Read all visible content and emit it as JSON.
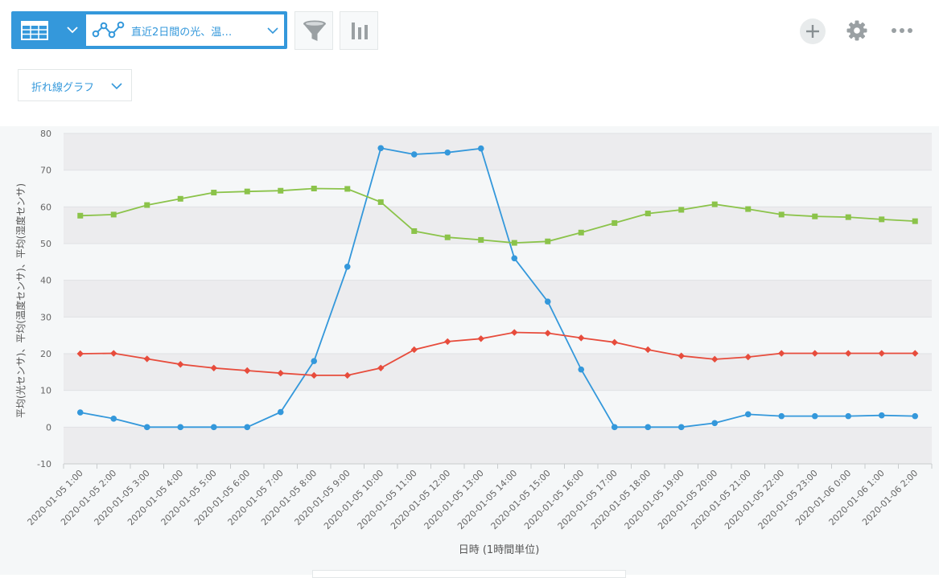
{
  "toolbar": {
    "view_name": "直近2日間の光、温…",
    "chart_type_label": "折れ線グラフ",
    "icons": [
      "table-icon",
      "chevron-down-icon",
      "line-chart-icon",
      "filter-icon",
      "bar-chart-icon",
      "plus-icon",
      "gear-icon",
      "more-icon"
    ],
    "accent_color": "#3498db"
  },
  "chart_data": {
    "type": "line",
    "xlabel": "日時 (1時間単位)",
    "ylabel": "平均(光センサ)、平均(温度センサ)、平均(湿度センサ)",
    "ylim": [
      -10,
      80
    ],
    "yticks": [
      -10,
      0,
      10,
      20,
      30,
      40,
      50,
      60,
      70,
      80
    ],
    "grid": true,
    "legend": "none",
    "categories": [
      "2020-01-05 1:00",
      "2020-01-05 2:00",
      "2020-01-05 3:00",
      "2020-01-05 4:00",
      "2020-01-05 5:00",
      "2020-01-05 6:00",
      "2020-01-05 7:00",
      "2020-01-05 8:00",
      "2020-01-05 9:00",
      "2020-01-05 10:00",
      "2020-01-05 11:00",
      "2020-01-05 12:00",
      "2020-01-05 13:00",
      "2020-01-05 14:00",
      "2020-01-05 15:00",
      "2020-01-05 16:00",
      "2020-01-05 17:00",
      "2020-01-05 18:00",
      "2020-01-05 19:00",
      "2020-01-05 20:00",
      "2020-01-05 21:00",
      "2020-01-05 22:00",
      "2020-01-05 23:00",
      "2020-01-06 0:00",
      "2020-01-06 1:00",
      "2020-01-06 2:00"
    ],
    "series": [
      {
        "color": "#3498db",
        "marker": "circle",
        "values": [
          4,
          2.3,
          0,
          0,
          0,
          0,
          4.1,
          18,
          43.7,
          76,
          74.3,
          74.8,
          75.9,
          46,
          34.2,
          15.7,
          0,
          0,
          0,
          1.1,
          3.5,
          3,
          3,
          3,
          3.2,
          3
        ]
      },
      {
        "color": "#8bc34a",
        "marker": "square",
        "values": [
          57.6,
          57.9,
          60.5,
          62.2,
          63.9,
          64.2,
          64.4,
          65,
          64.9,
          61.3,
          53.4,
          51.7,
          51,
          50.2,
          50.6,
          53,
          55.6,
          58.2,
          59.2,
          60.7,
          59.4,
          57.9,
          57.4,
          57.2,
          56.6,
          56.1
        ]
      },
      {
        "color": "#e74c3c",
        "marker": "diamond",
        "values": [
          20,
          20.1,
          18.6,
          17.1,
          16.1,
          15.4,
          14.7,
          14.1,
          14.1,
          16.1,
          21.1,
          23.3,
          24.1,
          25.8,
          25.6,
          24.3,
          23.1,
          21.1,
          19.4,
          18.5,
          19.1,
          20.1,
          20.1,
          20.1,
          20.1,
          20.1
        ]
      }
    ]
  }
}
